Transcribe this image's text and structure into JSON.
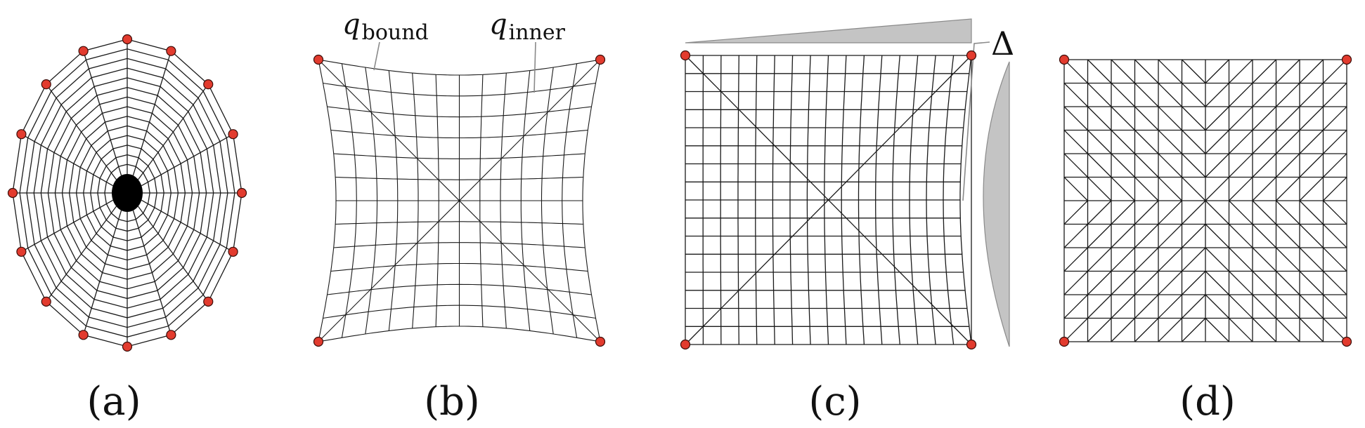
{
  "panels": {
    "a": {
      "label": "(a)"
    },
    "b": {
      "label": "(b)",
      "annotation_q_bound": {
        "symbol": "q",
        "subscript": "bound"
      },
      "annotation_q_inner": {
        "symbol": "q",
        "subscript": "inner"
      }
    },
    "c": {
      "label": "(c)",
      "annotation_delta": "Δ"
    },
    "d": {
      "label": "(d)"
    }
  },
  "colors": {
    "pin_fill": "#e23b2e",
    "mesh_stroke": "#1a1a1a",
    "leader_line": "#8a8a8a",
    "profile_fill": "#c4c4c4"
  }
}
